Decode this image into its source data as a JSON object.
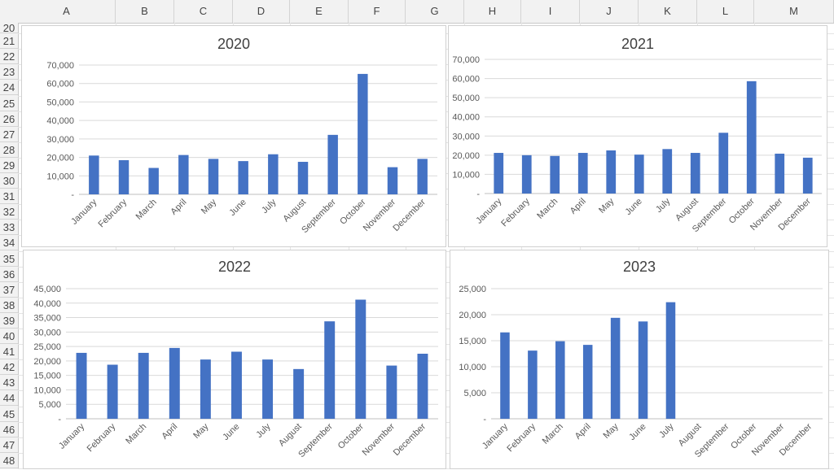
{
  "columns": [
    "A",
    "B",
    "C",
    "D",
    "E",
    "F",
    "G",
    "H",
    "I",
    "J",
    "K",
    "L",
    "M"
  ],
  "rows": [
    "20",
    "21",
    "22",
    "23",
    "24",
    "25",
    "26",
    "27",
    "28",
    "29",
    "30",
    "31",
    "32",
    "33",
    "34",
    "35",
    "36",
    "37",
    "38",
    "39",
    "40",
    "41",
    "42",
    "43",
    "44",
    "45",
    "46",
    "47",
    "48"
  ],
  "bar_color": "#4472c4",
  "chart_data": [
    {
      "type": "bar",
      "title": "2020",
      "categories": [
        "January",
        "February",
        "March",
        "April",
        "May",
        "June",
        "July",
        "August",
        "September",
        "October",
        "November",
        "December"
      ],
      "values": [
        21000,
        18500,
        14300,
        21300,
        19200,
        18000,
        21700,
        17600,
        32200,
        65200,
        14700,
        19200
      ],
      "ylim": [
        0,
        70000
      ],
      "yticks": [
        "-",
        "10,000",
        "20,000",
        "30,000",
        "40,000",
        "50,000",
        "60,000",
        "70,000"
      ],
      "grid": true
    },
    {
      "type": "bar",
      "title": "2021",
      "categories": [
        "January",
        "February",
        "March",
        "April",
        "May",
        "June",
        "July",
        "August",
        "September",
        "October",
        "November",
        "December"
      ],
      "values": [
        21200,
        20000,
        19600,
        21200,
        22500,
        20300,
        23200,
        21200,
        31700,
        58600,
        20800,
        18700
      ],
      "ylim": [
        0,
        70000
      ],
      "yticks": [
        "-",
        "10,000",
        "20,000",
        "30,000",
        "40,000",
        "50,000",
        "60,000",
        "70,000"
      ],
      "grid": true
    },
    {
      "type": "bar",
      "title": "2022",
      "categories": [
        "January",
        "February",
        "March",
        "April",
        "May",
        "June",
        "July",
        "August",
        "September",
        "October",
        "November",
        "December"
      ],
      "values": [
        22800,
        18700,
        22800,
        24500,
        20500,
        23200,
        20500,
        17200,
        33700,
        41200,
        18400,
        22500
      ],
      "ylim": [
        0,
        45000
      ],
      "yticks": [
        "-",
        "5,000",
        "10,000",
        "15,000",
        "20,000",
        "25,000",
        "30,000",
        "35,000",
        "40,000",
        "45,000"
      ],
      "grid": true
    },
    {
      "type": "bar",
      "title": "2023",
      "categories": [
        "January",
        "February",
        "March",
        "April",
        "May",
        "June",
        "July",
        "August",
        "September",
        "October",
        "November",
        "December"
      ],
      "values": [
        16600,
        13100,
        14900,
        14200,
        19400,
        18700,
        22400,
        null,
        null,
        null,
        null,
        null
      ],
      "ylim": [
        0,
        25000
      ],
      "yticks": [
        "-",
        "5,000",
        "10,000",
        "15,000",
        "20,000",
        "25,000"
      ],
      "grid": true
    }
  ]
}
